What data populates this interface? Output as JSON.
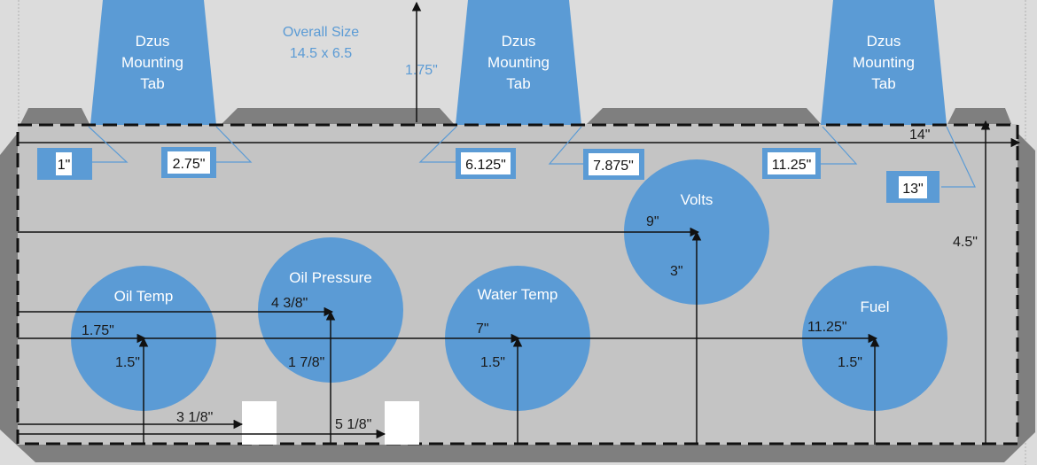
{
  "overall_size": {
    "line1": "Overall Size",
    "line2": "14.5 x 6.5"
  },
  "tab_height_label": "1.75\"",
  "width_label": "14\"",
  "height_label": "4.5\"",
  "tabs": [
    {
      "line1": "Dzus",
      "line2": "Mounting",
      "line3": "Tab"
    },
    {
      "line1": "Dzus",
      "line2": "Mounting",
      "line3": "Tab"
    },
    {
      "line1": "Dzus",
      "line2": "Mounting",
      "line3": "Tab"
    }
  ],
  "hole_callouts": [
    "1\"",
    "2.75\"",
    "6.125\"",
    "7.875\"",
    "11.25\"",
    "13\""
  ],
  "gauges": [
    {
      "name": "Oil Temp",
      "x_label": "1.75\"",
      "y_label": "1.5\""
    },
    {
      "name": "Oil Pressure",
      "x_label": "4 3/8\"",
      "y_label": "1 7/8\""
    },
    {
      "name": "Water Temp",
      "x_label": "7\"",
      "y_label": "1.5\""
    },
    {
      "name": "Volts",
      "x_label": "9\"",
      "y_label": "3\""
    },
    {
      "name": "Fuel",
      "x_label": "11.25\"",
      "y_label": "1.5\""
    }
  ],
  "switches": [
    {
      "x_label": "3 1/8\""
    },
    {
      "x_label": "5 1/8\""
    }
  ],
  "colors": {
    "panel": "#c4c4c4",
    "frame": "#7f7f7f",
    "gauge": "#5b9bd5",
    "callout": "#5b9bd5",
    "background": "#dcdcdc"
  }
}
